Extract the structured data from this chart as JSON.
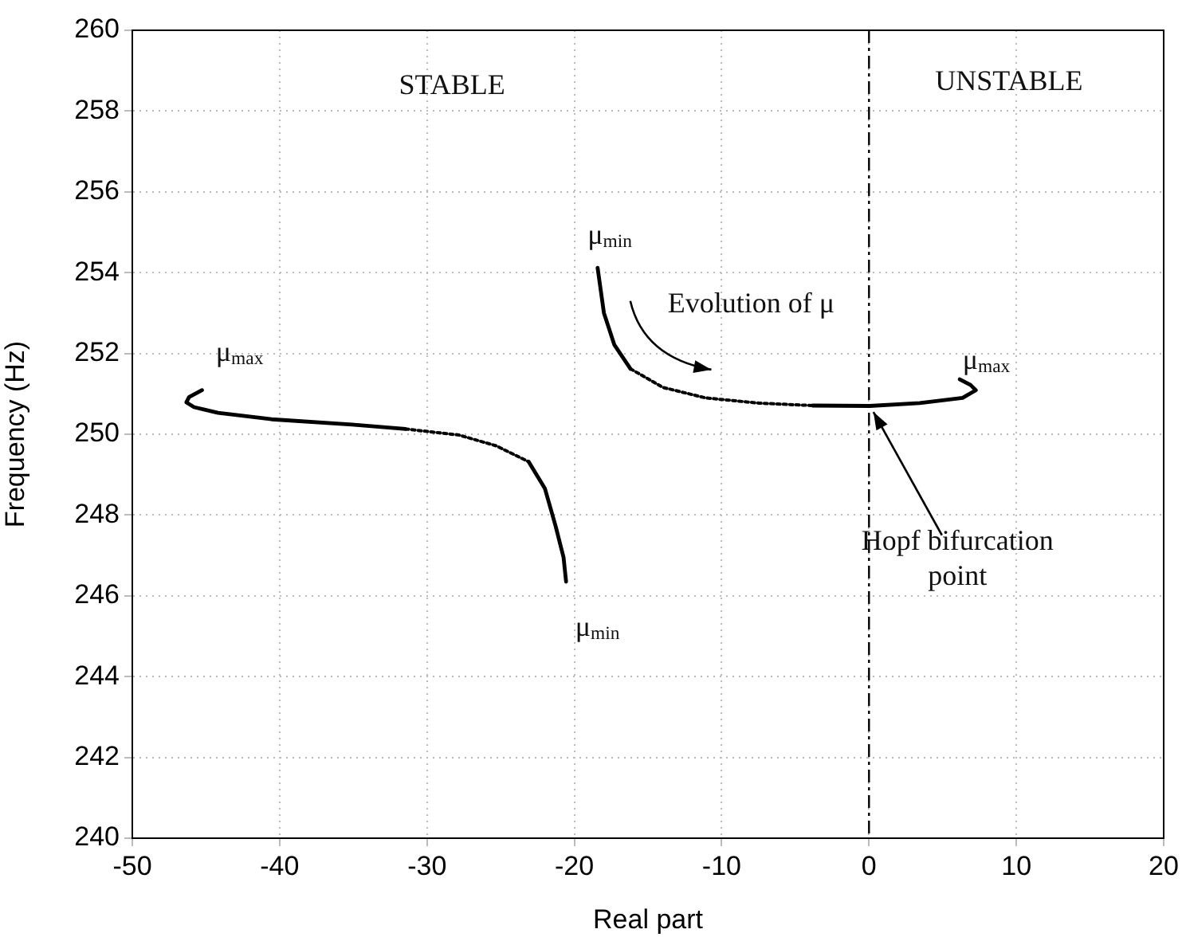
{
  "chart_data": {
    "type": "line",
    "xlabel": "Real part",
    "ylabel": "Frequency (Hz)",
    "xlim": [
      -50,
      20
    ],
    "xticks": [
      -50,
      -40,
      -30,
      -20,
      -10,
      0,
      10,
      20
    ],
    "ylim": [
      240,
      260
    ],
    "yticks": [
      240,
      242,
      244,
      246,
      248,
      250,
      252,
      254,
      256,
      258,
      260
    ],
    "grid": true,
    "marker": "none",
    "series": [
      {
        "color": "#000000",
        "line_style": "solid",
        "x": [
          -45.27,
          -46.15,
          -46.33,
          -45.81,
          -44.18,
          -40.55,
          -35.09,
          -31.46
        ],
        "values": [
          251.09,
          250.92,
          250.79,
          250.67,
          250.53,
          250.37,
          250.24,
          250.13
        ]
      },
      {
        "color": "#000000",
        "line_style": "dotted",
        "x": [
          -31.46,
          -27.82,
          -25.28,
          -23.1
        ],
        "values": [
          250.13,
          249.98,
          249.71,
          249.32
        ]
      },
      {
        "color": "#000000",
        "line_style": "solid",
        "x": [
          -23.1,
          -22.0,
          -21.28,
          -20.73,
          -20.56
        ],
        "values": [
          249.32,
          248.66,
          247.74,
          246.95,
          246.35
        ]
      },
      {
        "color": "#000000",
        "line_style": "solid",
        "x": [
          -18.42,
          -17.99,
          -17.28,
          -16.19
        ],
        "values": [
          254.12,
          253.0,
          252.21,
          251.62
        ]
      },
      {
        "color": "#000000",
        "line_style": "dotted",
        "x": [
          -16.19,
          -14.0,
          -11.1,
          -7.47,
          -3.83
        ],
        "values": [
          251.62,
          251.16,
          250.9,
          250.77,
          250.71
        ]
      },
      {
        "color": "#000000",
        "line_style": "solid",
        "x": [
          -3.83,
          0.05,
          3.44,
          6.35,
          7.25,
          6.89,
          6.16
        ],
        "values": [
          250.71,
          250.7,
          250.77,
          250.9,
          251.09,
          251.22,
          251.36
        ]
      }
    ],
    "ref_lines": [
      {
        "axis": "x",
        "value": 0,
        "line_style": "dashed",
        "color": "#000000"
      }
    ],
    "annotations": [
      "STABLE",
      "UNSTABLE",
      "μ$_{max}$",
      "μ$_{min}$",
      "Evolution of μ",
      "μ$_{max}$",
      {
        "text": "Hopf bifurcation point",
        "x": 0,
        "y": 250.7
      },
      "μ$_{min}$"
    ]
  }
}
